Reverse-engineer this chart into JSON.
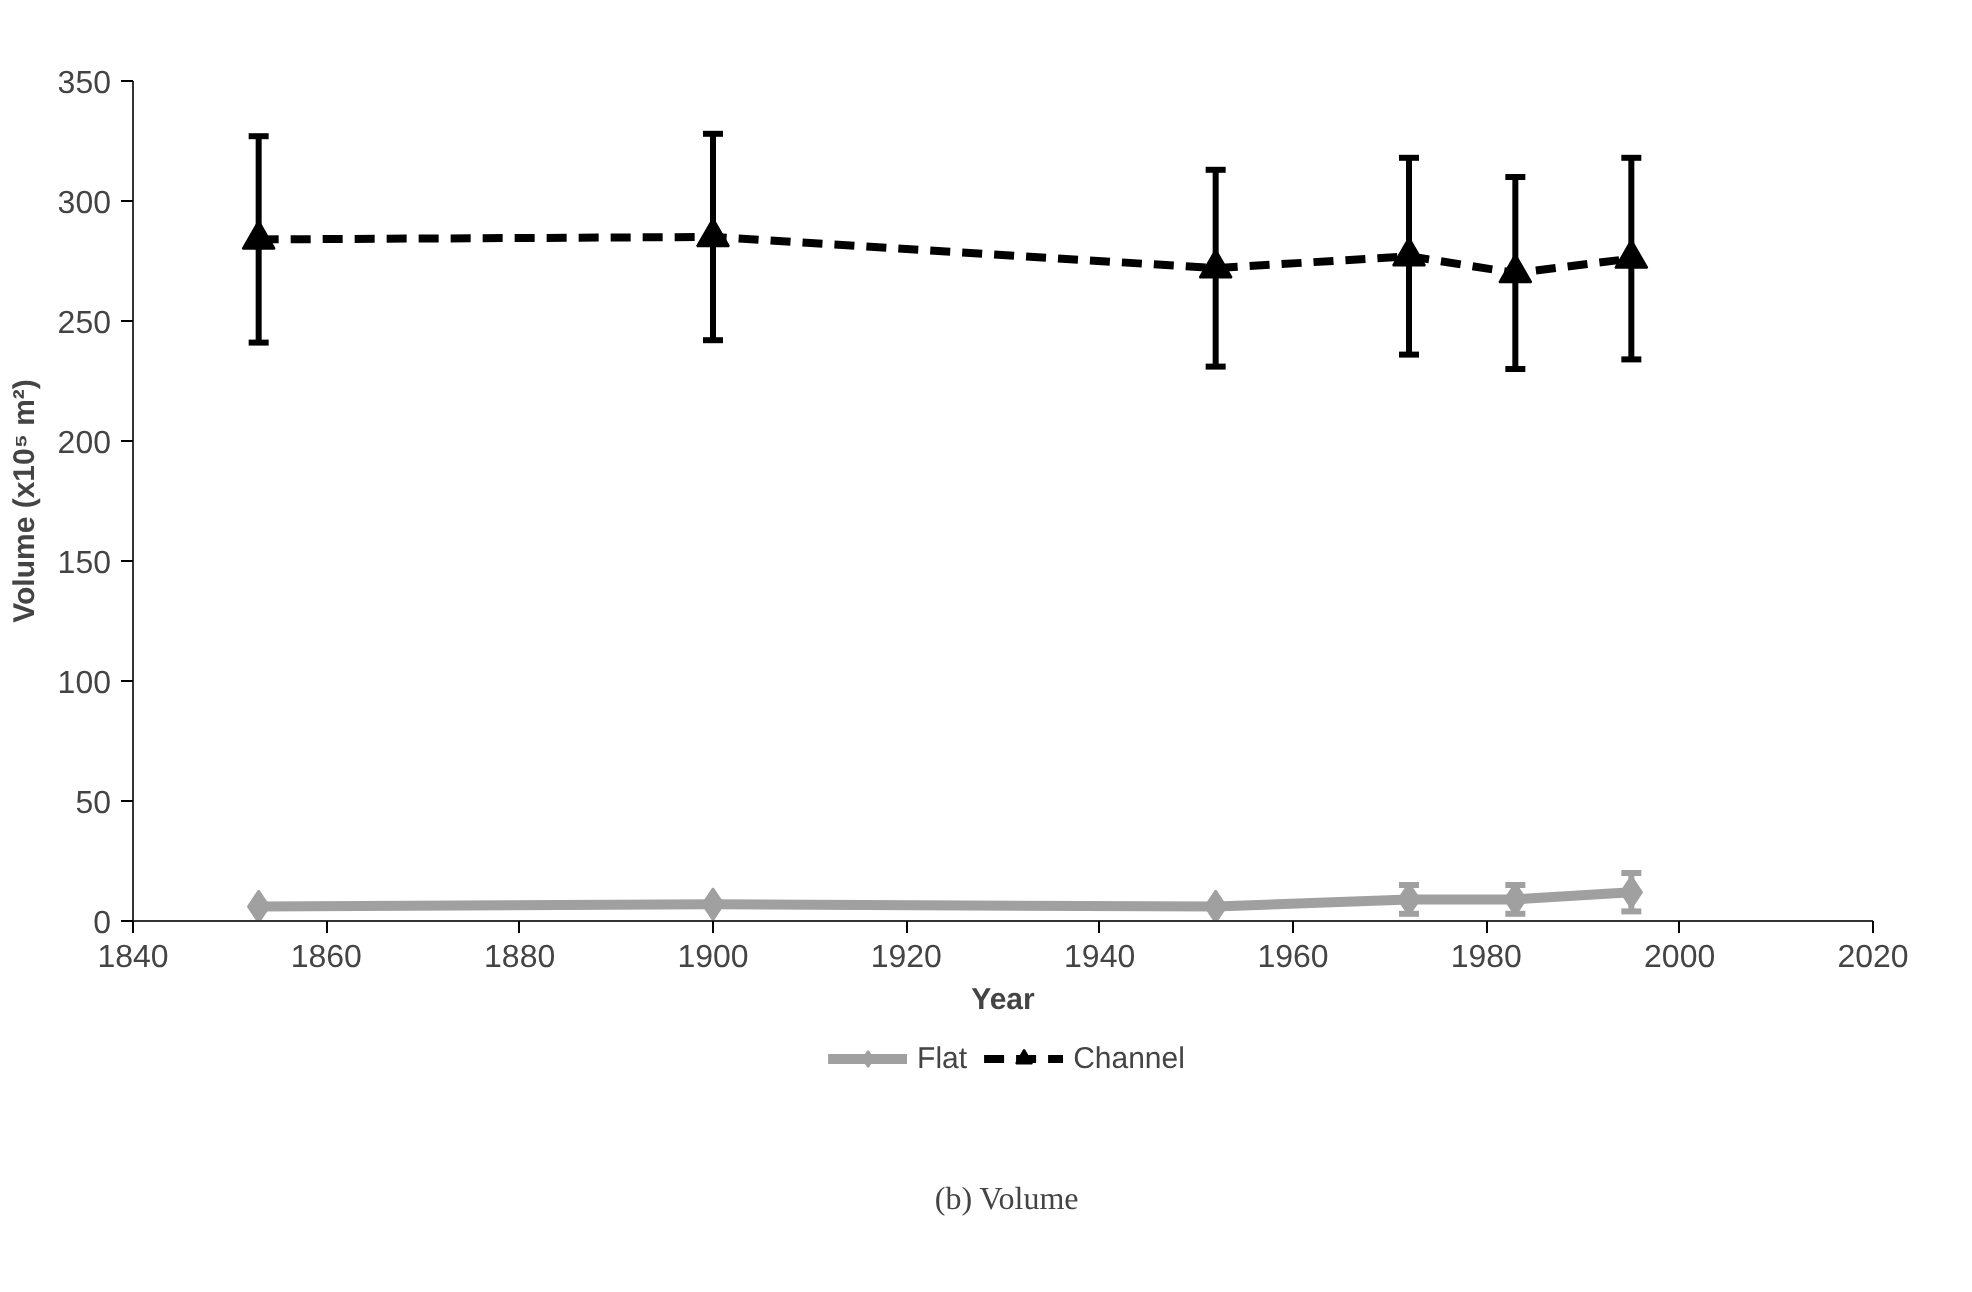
{
  "chart_data": {
    "type": "line",
    "xlabel": "Year",
    "ylabel": "Volume (x10⁵ m²)",
    "x": [
      1853,
      1900,
      1952,
      1972,
      1983,
      1995
    ],
    "series": [
      {
        "name": "Flat",
        "color": "#a0a0a0",
        "marker": "diamond",
        "line_style": "solid",
        "values": [
          6,
          7,
          6,
          9,
          9,
          12
        ],
        "errors": [
          null,
          null,
          null,
          6,
          6,
          8
        ]
      },
      {
        "name": "Channel",
        "color": "#000000",
        "marker": "triangle",
        "line_style": "dashed",
        "values": [
          284,
          285,
          272,
          277,
          270,
          276
        ],
        "errors": [
          43,
          43,
          41,
          41,
          40,
          42
        ]
      }
    ],
    "xlim": [
      1840,
      2020
    ],
    "xticks": [
      1840,
      1860,
      1880,
      1900,
      1920,
      1940,
      1960,
      1980,
      2000,
      2020
    ],
    "ylim": [
      0,
      350
    ],
    "yticks": [
      0,
      50,
      100,
      150,
      200,
      250,
      300,
      350
    ],
    "grid": false,
    "legend": "bottom",
    "annotations": [
      "(b) Volume"
    ]
  }
}
